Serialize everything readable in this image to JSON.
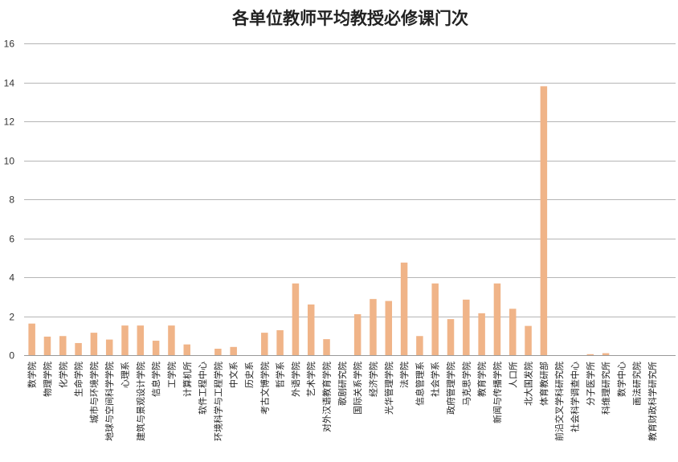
{
  "chart_data": {
    "type": "bar",
    "title": "各单位教师平均教授必修课门次",
    "xlabel": "",
    "ylabel": "",
    "ylim": [
      0,
      16
    ],
    "yticks": [
      0,
      2,
      4,
      6,
      8,
      10,
      12,
      14,
      16
    ],
    "grid": true,
    "legend": "none",
    "bar_color": "#f0b488",
    "categories": [
      "数学院",
      "物理学院",
      "化学院",
      "生命学院",
      "城市与环境学院",
      "地球与空间科学学院",
      "心理系",
      "建筑与景观设计学院",
      "信息学院",
      "工学院",
      "计算机所",
      "软件工程中心",
      "环境科学与工程学院",
      "中文系",
      "历史系",
      "考古文博学院",
      "哲学系",
      "外语学院",
      "艺术学院",
      "对外汉语教育学院",
      "歌剧研究院",
      "国际关系学院",
      "经济学院",
      "光华管理学院",
      "法学院",
      "信息管理系",
      "社会学系",
      "政府管理学院",
      "马克思学院",
      "教育学院",
      "新闻与传播学院",
      "人口所",
      "北大国发院",
      "体育教研部",
      "前沿交叉学科研究院",
      "社会科学调查中心",
      "分子医学所",
      "科维理研究所",
      "数学中心",
      "画法研究院",
      "教育财政科学研究所",
      ""
    ],
    "values": [
      1.62,
      0.95,
      0.98,
      0.62,
      1.15,
      0.8,
      1.52,
      1.52,
      0.74,
      1.52,
      0.55,
      0,
      0.33,
      0.42,
      0,
      1.15,
      1.28,
      3.68,
      2.6,
      0.82,
      0,
      2.1,
      2.88,
      2.78,
      4.75,
      0.98,
      3.68,
      1.85,
      2.85,
      2.15,
      3.68,
      2.38,
      1.5,
      13.8,
      0,
      0,
      0.05,
      0.1,
      0,
      0,
      0,
      0
    ]
  }
}
